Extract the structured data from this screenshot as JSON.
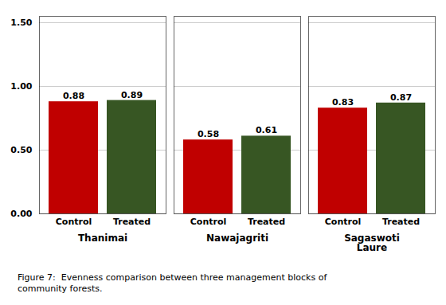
{
  "chart_data": {
    "type": "bar",
    "categories": [
      "Thanimai",
      "Nawajagriti",
      "Sagaswoti\nLaure"
    ],
    "series": [
      {
        "name": "Control",
        "color": "#c00000",
        "values": [
          0.88,
          0.58,
          0.83
        ]
      },
      {
        "name": "Treated",
        "color": "#375623",
        "values": [
          0.89,
          0.61,
          0.87
        ]
      }
    ],
    "ylim": [
      0,
      1.55
    ],
    "yticks": [
      {
        "value": 0,
        "label": "0.00"
      },
      {
        "value": 0.5,
        "label": "0.50"
      },
      {
        "value": 1,
        "label": "1.00"
      },
      {
        "value": 1.5,
        "label": "1.50"
      }
    ],
    "grid": true,
    "data_labels": true,
    "caption": "Figure 7:  Evenness comparison between three management blocks of\ncommunity forests."
  }
}
